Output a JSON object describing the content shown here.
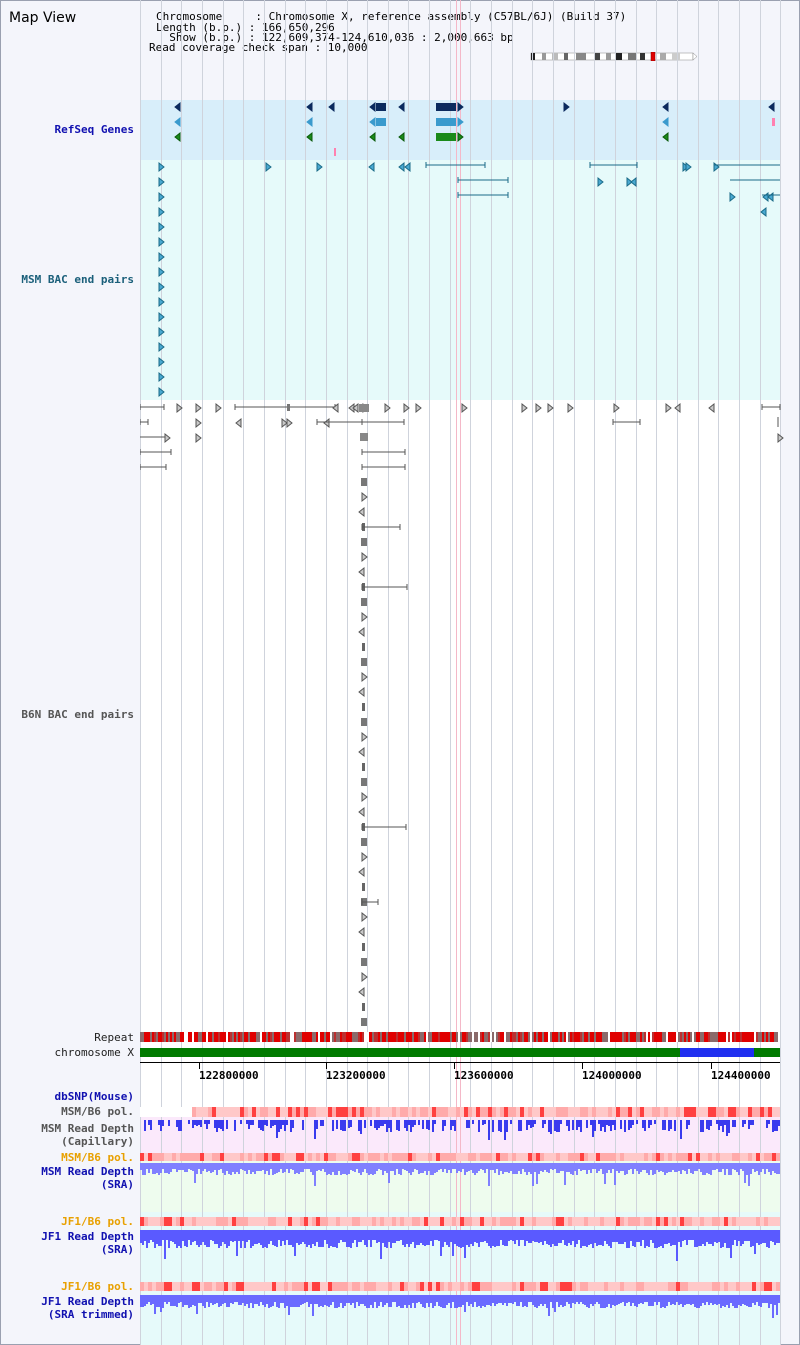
{
  "header": {
    "title": "Map View",
    "chromosome_line": "Chromosome     : Chromosome X, reference assembly (C57BL/6J) (Build 37)",
    "length_line": "Length (b.p.) : 166,650,296",
    "show_line": "  Show (b.p.) : 122,609,374-124,610,036 : 2,000,663 bp",
    "coverage_line": "Read coverage check span : 10,000"
  },
  "tracks": {
    "refseq": "RefSeq Genes",
    "msm_bac": "MSM BAC end pairs",
    "b6n_bac": "B6N BAC end pairs",
    "repeat": "Repeat",
    "chromosome": "chromosome X",
    "dbsnp": "dbSNP(Mouse)",
    "msm_pol_1": "MSM/B6 pol.",
    "msm_depth_cap": "MSM Read Depth\n(Capillary)",
    "msm_pol_2": "MSM/B6 pol.",
    "msm_depth_sra": "MSM Read Depth\n(SRA)",
    "jf1_pol_1": "JF1/B6 pol.",
    "jf1_depth_sra": "JF1 Read Depth\n(SRA)",
    "jf1_pol_2": "JF1/B6 pol.",
    "jf1_depth_trim": "JF1 Read Depth\n(SRA trimmed)"
  },
  "axis": {
    "ticks": [
      "122800000",
      "123200000",
      "123600000",
      "124000000",
      "124400000"
    ]
  },
  "colors": {
    "refseq_bg": "#d8eefa",
    "msm_bac_bg": "#e6fafa",
    "b6n_bg": "#ffffff",
    "chrom_green": "#007a00",
    "chrom_blue": "#1f2ff0",
    "depth_blue": "#5050ff",
    "pol_red": "#ff2020"
  }
}
